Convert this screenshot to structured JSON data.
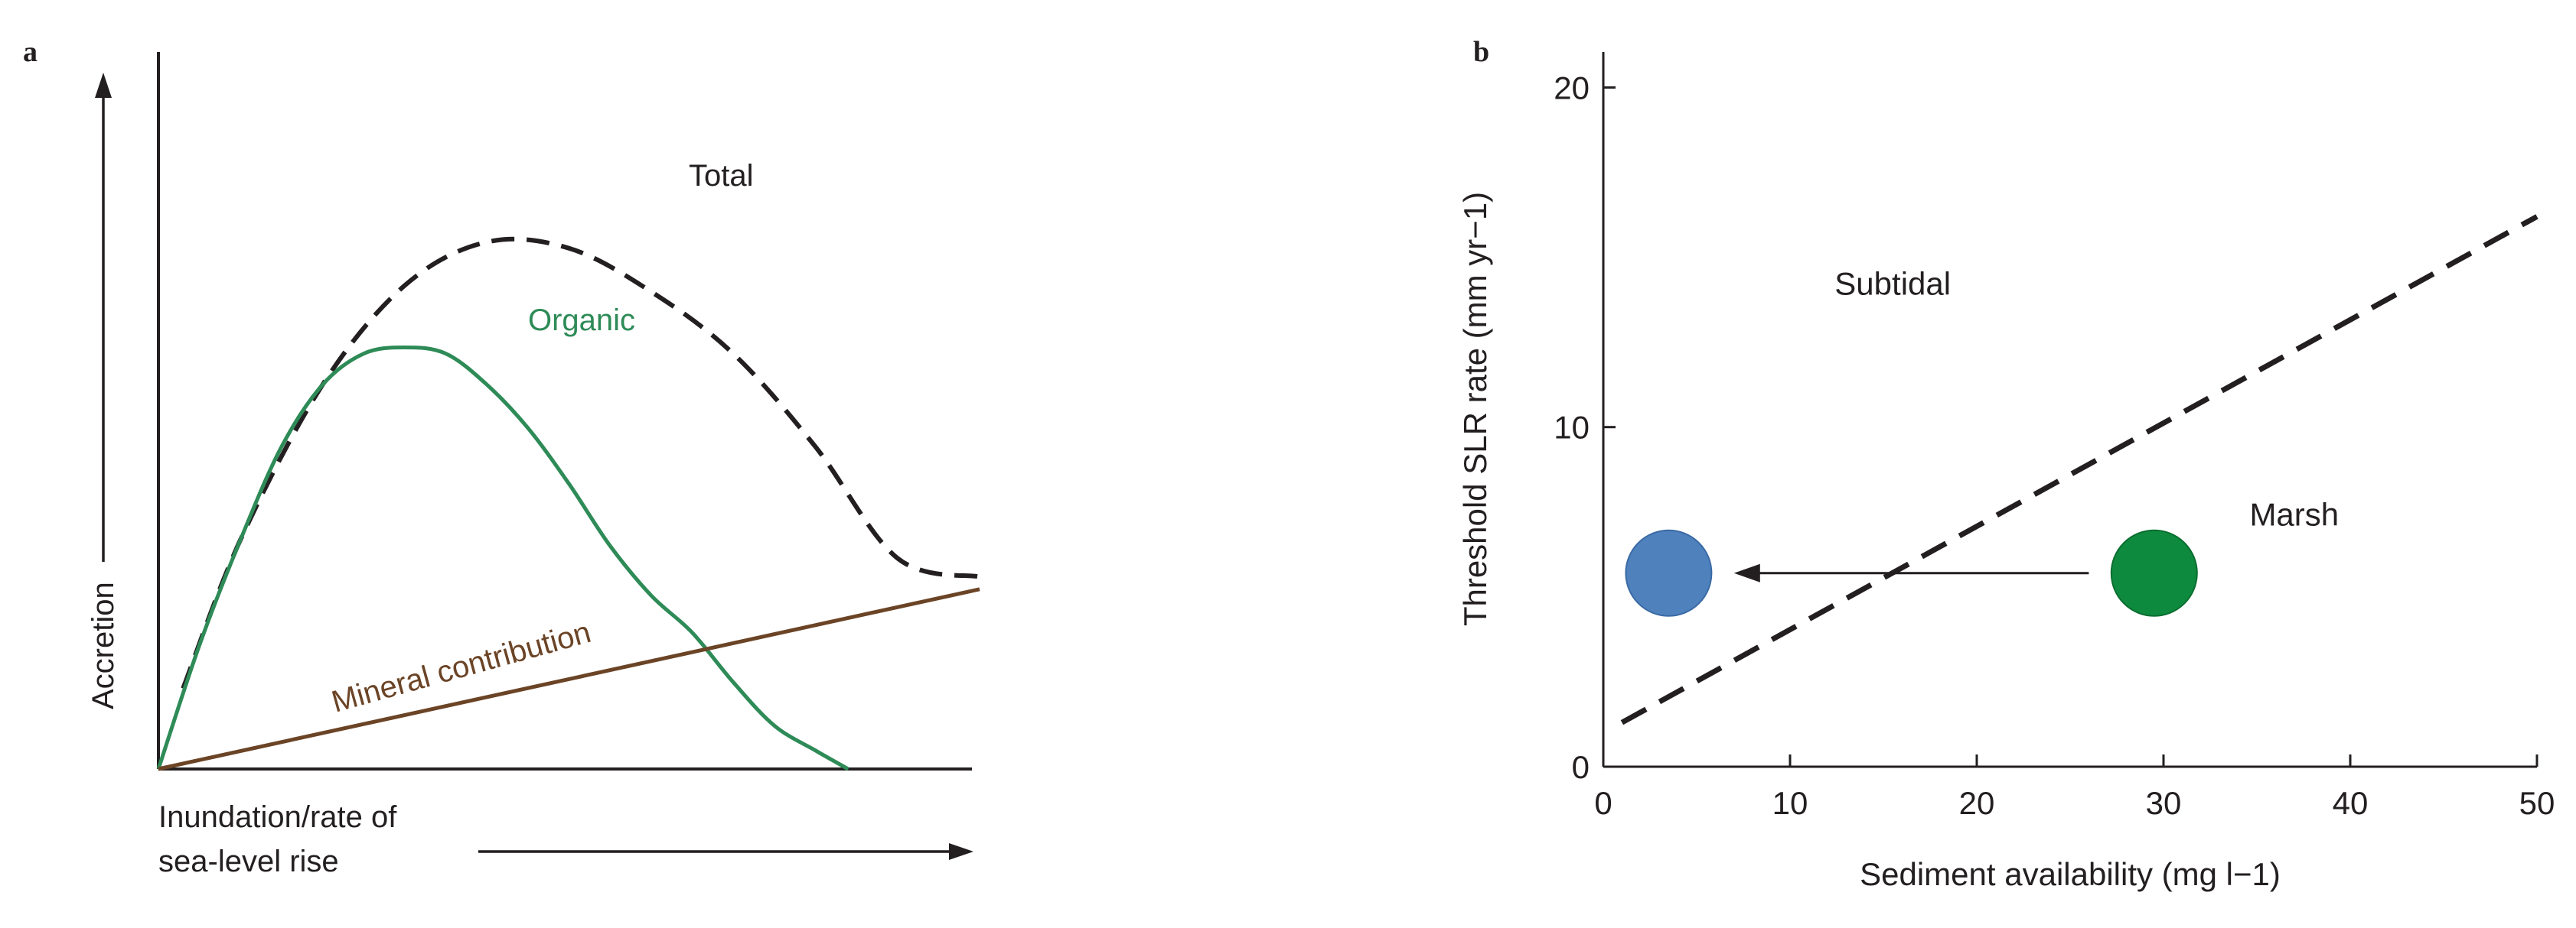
{
  "colors": {
    "axis": "#231f20",
    "total": "#231f20",
    "organic": "#2e8b57",
    "mineral": "#6b4426",
    "subtidal_point": "#4f81bd",
    "marsh_point": "#0e8a3e",
    "threshold_line": "#231f20"
  },
  "chart_data": [
    {
      "panel": "a",
      "type": "line",
      "ylabel": "Accretion",
      "xlabel_line1": "Inundation/rate of",
      "xlabel_line2": "sea-level rise",
      "xlim": [
        0,
        1
      ],
      "ylim": [
        0,
        1
      ],
      "ticks": "none",
      "series": [
        {
          "name": "Total",
          "style": "dashed",
          "x": [
            0.03,
            0.1,
            0.2,
            0.3,
            0.4,
            0.5,
            0.6,
            0.7,
            0.8,
            0.9,
            1.0
          ],
          "y": [
            0.13,
            0.37,
            0.62,
            0.78,
            0.85,
            0.84,
            0.77,
            0.67,
            0.52,
            0.34,
            0.31
          ]
        },
        {
          "name": "Organic",
          "style": "solid",
          "x": [
            0.0,
            0.05,
            0.1,
            0.15,
            0.2,
            0.25,
            0.3,
            0.35,
            0.4,
            0.45,
            0.5,
            0.55,
            0.6,
            0.65,
            0.7,
            0.75,
            0.8,
            0.84
          ],
          "y": [
            0.0,
            0.2,
            0.37,
            0.52,
            0.62,
            0.67,
            0.68,
            0.67,
            0.62,
            0.55,
            0.46,
            0.36,
            0.28,
            0.22,
            0.14,
            0.07,
            0.03,
            0.0
          ]
        },
        {
          "name": "Mineral contribution",
          "style": "solid",
          "x": [
            0.0,
            1.0
          ],
          "y": [
            0.0,
            0.29
          ]
        }
      ]
    },
    {
      "panel": "b",
      "type": "scatter",
      "xlabel": "Sediment availability (mg l−1)",
      "ylabel": "Threshold SLR rate (mm yr−1)",
      "xlim": [
        0,
        50
      ],
      "ylim": [
        0,
        21
      ],
      "xticks": [
        0,
        10,
        20,
        30,
        40,
        50
      ],
      "yticks": [
        0,
        10,
        20
      ],
      "region_labels": [
        {
          "text": "Subtidal",
          "x": 15.5,
          "y": 13.9
        },
        {
          "text": "Marsh",
          "x": 37,
          "y": 7.1
        }
      ],
      "threshold_line": {
        "x": [
          1,
          50
        ],
        "y": [
          1.3,
          16.2
        ]
      },
      "points": [
        {
          "region": "Subtidal",
          "x": 3.5,
          "y": 5.7
        },
        {
          "region": "Marsh",
          "x": 29.5,
          "y": 5.7
        }
      ],
      "arrow": {
        "from": [
          26,
          5.7
        ],
        "to": [
          7,
          5.7
        ]
      }
    }
  ]
}
